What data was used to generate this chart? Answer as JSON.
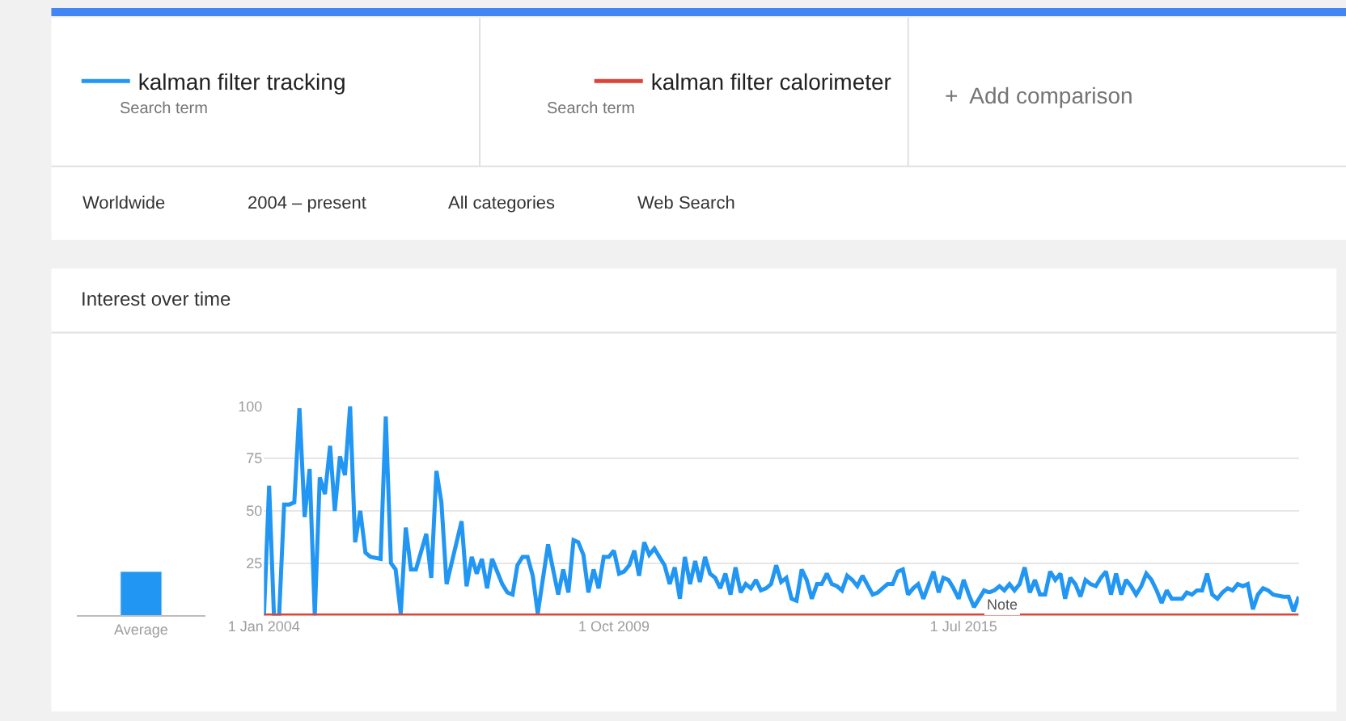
{
  "chart_data": [
    {
      "type": "bar",
      "title": "Interest over time",
      "categories": [
        "Average"
      ],
      "series": [
        {
          "color": "#2196f3",
          "values": [
            21
          ]
        }
      ],
      "ylim": [
        0,
        100
      ],
      "tick_labels": "x"
    },
    {
      "type": "line",
      "series": [
        {
          "name": "kalman filter tracking",
          "color": "#2196f3",
          "x": [
            "2004-01",
            "2004-02",
            "2004-03",
            "2004-04",
            "2004-05",
            "2004-06",
            "2004-07",
            "2004-08",
            "2004-09",
            "2004-10",
            "2004-11",
            "2004-12",
            "2005-01",
            "2005-02",
            "2005-03",
            "2005-04",
            "2005-05",
            "2005-06",
            "2005-07",
            "2005-08",
            "2005-09",
            "2005-10",
            "2005-12",
            "2006-01",
            "2006-02",
            "2006-03",
            "2006-04",
            "2006-05",
            "2006-06",
            "2006-07",
            "2006-09",
            "2006-10",
            "2006-11",
            "2006-12",
            "2007-01",
            "2007-04",
            "2007-05",
            "2007-06",
            "2007-07",
            "2007-08",
            "2007-09",
            "2007-10",
            "2007-12",
            "2008-01",
            "2008-02",
            "2008-03",
            "2008-04",
            "2008-05",
            "2008-06",
            "2008-07",
            "2008-09",
            "2008-10",
            "2008-11",
            "2008-12",
            "2009-01",
            "2009-02",
            "2009-03",
            "2009-04",
            "2009-05",
            "2009-06",
            "2009-07",
            "2009-08",
            "2009-09",
            "2009-10",
            "2009-11",
            "2009-12",
            "2010-01",
            "2010-02",
            "2010-03",
            "2010-04",
            "2010-05",
            "2010-06",
            "2010-07",
            "2010-08",
            "2010-09",
            "2010-10",
            "2010-11",
            "2010-12",
            "2011-01",
            "2011-02",
            "2011-03",
            "2011-04",
            "2011-05",
            "2011-06",
            "2011-07",
            "2011-08",
            "2011-09",
            "2011-10",
            "2011-11",
            "2011-12",
            "2012-01",
            "2012-02",
            "2012-03",
            "2012-04",
            "2012-05",
            "2012-06",
            "2012-07",
            "2012-08",
            "2012-09",
            "2012-10",
            "2012-11",
            "2012-12",
            "2013-01",
            "2013-02",
            "2013-03",
            "2013-04",
            "2013-05",
            "2013-06",
            "2013-07",
            "2013-08",
            "2013-09",
            "2013-10",
            "2013-11",
            "2014-01",
            "2014-02",
            "2014-03",
            "2014-04",
            "2014-05",
            "2014-06",
            "2014-07",
            "2014-08",
            "2014-09",
            "2014-10",
            "2014-11",
            "2015-01",
            "2015-02",
            "2015-03",
            "2015-04",
            "2015-05",
            "2015-06",
            "2015-07",
            "2015-08",
            "2015-09",
            "2015-11",
            "2015-12",
            "2016-01",
            "2016-02",
            "2016-03",
            "2016-04",
            "2016-05",
            "2016-06",
            "2016-07",
            "2016-08",
            "2016-09",
            "2016-10",
            "2016-11",
            "2016-12",
            "2017-01",
            "2017-02",
            "2017-03",
            "2017-04",
            "2017-05",
            "2017-06",
            "2017-07",
            "2017-08",
            "2017-09",
            "2017-10",
            "2017-11",
            "2017-12",
            "2018-01",
            "2018-02",
            "2018-03",
            "2018-04",
            "2018-05",
            "2018-06",
            "2018-07",
            "2018-08",
            "2018-09",
            "2018-10",
            "2018-11",
            "2018-12",
            "2019-01",
            "2019-02",
            "2019-03",
            "2019-04",
            "2019-05",
            "2019-06",
            "2019-07",
            "2019-08",
            "2019-09",
            "2019-10",
            "2019-11",
            "2019-12",
            "2020-01",
            "2020-02",
            "2020-03",
            "2020-04",
            "2020-05",
            "2020-06",
            "2020-07",
            "2020-08",
            "2020-10",
            "2020-11",
            "2020-12",
            "2021-01"
          ],
          "values": [
            0,
            62,
            0,
            0,
            53,
            53,
            54,
            99,
            47,
            70,
            0,
            66,
            58,
            81,
            50,
            76,
            67,
            100,
            35,
            50,
            30,
            28,
            27,
            95,
            25,
            22,
            1,
            42,
            22,
            22,
            39,
            18,
            69,
            54,
            15,
            45,
            14,
            28,
            20,
            27,
            13,
            27,
            15,
            11,
            10,
            24,
            28,
            28,
            19,
            1,
            34,
            22,
            10,
            22,
            11,
            36,
            35,
            29,
            11,
            22,
            13,
            28,
            28,
            31,
            20,
            21,
            24,
            31,
            19,
            35,
            29,
            32,
            28,
            24,
            15,
            23,
            8,
            28,
            15,
            26,
            16,
            28,
            20,
            18,
            13,
            20,
            10,
            23,
            11,
            15,
            13,
            17,
            12,
            13,
            15,
            24,
            16,
            18,
            8,
            7,
            22,
            17,
            8,
            15,
            15,
            20,
            15,
            14,
            12,
            19,
            17,
            14,
            19,
            10,
            11,
            13,
            15,
            15,
            21,
            22,
            10,
            13,
            15,
            8,
            21,
            11,
            18,
            17,
            13,
            8,
            17,
            10,
            4,
            12,
            11,
            12,
            14,
            12,
            15,
            12,
            15,
            23,
            11,
            17,
            10,
            10,
            21,
            17,
            20,
            8,
            18,
            15,
            9,
            17,
            15,
            14,
            18,
            21,
            10,
            20,
            10,
            17,
            14,
            10,
            14,
            20,
            17,
            12,
            6,
            12,
            8,
            8,
            8,
            11,
            10,
            12,
            12,
            20,
            10,
            8,
            11,
            13,
            12,
            15,
            14,
            15,
            3,
            10,
            13,
            12,
            10,
            9,
            9,
            2,
            9
          ]
        },
        {
          "name": "kalman filter calorimeter",
          "color": "#db4437",
          "x": [
            "2004-01",
            "2021-01"
          ],
          "values": [
            0,
            0
          ]
        }
      ],
      "xlim": [
        "2004-01-01",
        "2021-01-01"
      ],
      "xticks": [
        {
          "value": "2004-01-01",
          "label": "1 Jan 2004"
        },
        {
          "value": "2009-10-01",
          "label": "1 Oct 2009"
        },
        {
          "value": "2015-07-01",
          "label": "1 Jul 2015"
        }
      ],
      "ylim": [
        0,
        100
      ],
      "yticks": [
        25,
        50,
        75,
        100
      ],
      "grid": "y",
      "legend": "top",
      "marker": "none",
      "annotations": [
        "Search term",
        "Search term",
        "+  Add comparison",
        "Worldwide",
        "2004 – present",
        "All categories",
        "Web Search",
        "Note"
      ]
    }
  ]
}
